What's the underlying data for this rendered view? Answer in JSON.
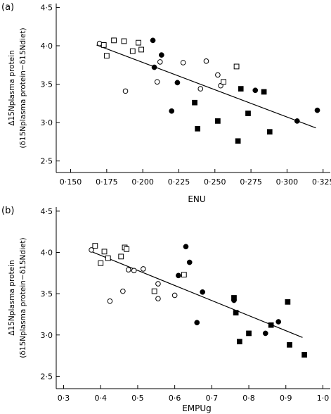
{
  "chart_data": [
    {
      "type": "scatter",
      "panel_label": "(a)",
      "xlabel": "ENU",
      "ylabel_main": "Δ15Nplasma protein",
      "ylabel_sub": "(δ15Nplasma protein−δ15Ndiet)",
      "xlim": [
        0.14,
        0.33
      ],
      "ylim": [
        2.35,
        4.55
      ],
      "xticks": [
        0.15,
        0.175,
        0.2,
        0.225,
        0.25,
        0.275,
        0.3,
        0.325
      ],
      "xtick_labels": [
        "0·150",
        "0·175",
        "0·200",
        "0·225",
        "0·250",
        "0·275",
        "0·300",
        "0·325"
      ],
      "yticks": [
        2.5,
        3.0,
        3.5,
        4.0,
        4.5
      ],
      "ytick_labels": [
        "2·5",
        "3·0",
        "3·5",
        "4·0",
        "4·5"
      ],
      "series": [
        {
          "marker": "open-circle",
          "points": [
            {
              "x": 0.17,
              "y": 4.03
            },
            {
              "x": 0.188,
              "y": 3.41
            },
            {
              "x": 0.21,
              "y": 3.53
            },
            {
              "x": 0.212,
              "y": 3.79
            },
            {
              "x": 0.228,
              "y": 3.78
            },
            {
              "x": 0.24,
              "y": 3.44
            },
            {
              "x": 0.244,
              "y": 3.8
            },
            {
              "x": 0.252,
              "y": 3.62
            },
            {
              "x": 0.254,
              "y": 3.48
            }
          ]
        },
        {
          "marker": "open-square",
          "points": [
            {
              "x": 0.173,
              "y": 4.01
            },
            {
              "x": 0.175,
              "y": 3.87
            },
            {
              "x": 0.18,
              "y": 4.07
            },
            {
              "x": 0.187,
              "y": 4.06
            },
            {
              "x": 0.193,
              "y": 3.93
            },
            {
              "x": 0.197,
              "y": 4.04
            },
            {
              "x": 0.199,
              "y": 3.95
            },
            {
              "x": 0.256,
              "y": 3.53
            },
            {
              "x": 0.265,
              "y": 3.73
            }
          ]
        },
        {
          "marker": "filled-circle",
          "points": [
            {
              "x": 0.207,
              "y": 4.07
            },
            {
              "x": 0.208,
              "y": 3.72
            },
            {
              "x": 0.213,
              "y": 3.88
            },
            {
              "x": 0.22,
              "y": 3.15
            },
            {
              "x": 0.224,
              "y": 3.52
            },
            {
              "x": 0.278,
              "y": 3.42
            },
            {
              "x": 0.307,
              "y": 3.02
            },
            {
              "x": 0.321,
              "y": 3.16
            }
          ]
        },
        {
          "marker": "filled-square",
          "points": [
            {
              "x": 0.236,
              "y": 3.26
            },
            {
              "x": 0.238,
              "y": 2.92
            },
            {
              "x": 0.252,
              "y": 3.02
            },
            {
              "x": 0.266,
              "y": 2.76
            },
            {
              "x": 0.268,
              "y": 3.44
            },
            {
              "x": 0.273,
              "y": 3.12
            },
            {
              "x": 0.284,
              "y": 3.4
            },
            {
              "x": 0.288,
              "y": 2.88
            }
          ]
        }
      ],
      "regression_line": [
        {
          "x": 0.168,
          "y": 4.01
        },
        {
          "x": 0.32,
          "y": 2.93
        }
      ]
    },
    {
      "type": "scatter",
      "panel_label": "(b)",
      "xlabel": "EMPUg",
      "ylabel_main": "Δ15Nplasma protein",
      "ylabel_sub": "(δ15Nplasma protein−δ15Ndiet)",
      "xlim": [
        0.28,
        1.02
      ],
      "ylim": [
        2.35,
        4.55
      ],
      "xticks": [
        0.3,
        0.4,
        0.5,
        0.6,
        0.7,
        0.8,
        0.9,
        1.0
      ],
      "xtick_labels": [
        "0·3",
        "0·4",
        "0·5",
        "0·6",
        "0·7",
        "0·8",
        "0·9",
        "1·0"
      ],
      "yticks": [
        2.5,
        3.0,
        3.5,
        4.0,
        4.5
      ],
      "ytick_labels": [
        "2·5",
        "3·0",
        "3·5",
        "4·0",
        "4·5"
      ],
      "series": [
        {
          "marker": "open-circle",
          "points": [
            {
              "x": 0.375,
              "y": 4.03
            },
            {
              "x": 0.425,
              "y": 3.41
            },
            {
              "x": 0.46,
              "y": 3.53
            },
            {
              "x": 0.475,
              "y": 3.79
            },
            {
              "x": 0.49,
              "y": 3.78
            },
            {
              "x": 0.515,
              "y": 3.8
            },
            {
              "x": 0.555,
              "y": 3.44
            },
            {
              "x": 0.555,
              "y": 3.62
            },
            {
              "x": 0.6,
              "y": 3.48
            }
          ]
        },
        {
          "marker": "open-square",
          "points": [
            {
              "x": 0.385,
              "y": 4.08
            },
            {
              "x": 0.4,
              "y": 3.87
            },
            {
              "x": 0.41,
              "y": 4.01
            },
            {
              "x": 0.42,
              "y": 3.93
            },
            {
              "x": 0.455,
              "y": 3.95
            },
            {
              "x": 0.465,
              "y": 4.06
            },
            {
              "x": 0.47,
              "y": 4.04
            },
            {
              "x": 0.545,
              "y": 3.53
            },
            {
              "x": 0.625,
              "y": 3.73
            }
          ]
        },
        {
          "marker": "filled-circle",
          "points": [
            {
              "x": 0.61,
              "y": 3.72
            },
            {
              "x": 0.63,
              "y": 4.07
            },
            {
              "x": 0.64,
              "y": 3.88
            },
            {
              "x": 0.66,
              "y": 3.15
            },
            {
              "x": 0.675,
              "y": 3.52
            },
            {
              "x": 0.76,
              "y": 3.42
            },
            {
              "x": 0.845,
              "y": 3.02
            },
            {
              "x": 0.88,
              "y": 3.16
            }
          ]
        },
        {
          "marker": "filled-square",
          "points": [
            {
              "x": 0.76,
              "y": 3.45
            },
            {
              "x": 0.765,
              "y": 3.27
            },
            {
              "x": 0.775,
              "y": 2.92
            },
            {
              "x": 0.8,
              "y": 3.02
            },
            {
              "x": 0.86,
              "y": 3.12
            },
            {
              "x": 0.905,
              "y": 3.4
            },
            {
              "x": 0.91,
              "y": 2.88
            },
            {
              "x": 0.95,
              "y": 2.76
            }
          ]
        }
      ],
      "regression_line": [
        {
          "x": 0.375,
          "y": 4.01
        },
        {
          "x": 0.945,
          "y": 2.97
        }
      ]
    }
  ]
}
